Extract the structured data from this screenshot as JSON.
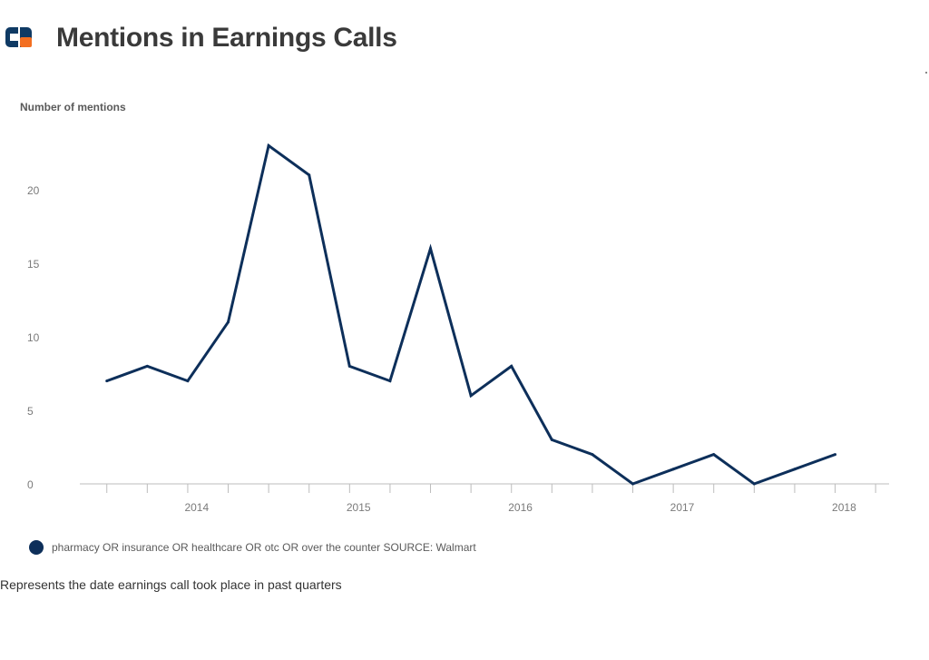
{
  "title": "Mentions in Earnings Calls",
  "logo": {
    "icon": "company-logo-icon",
    "colors": {
      "dark": "#0f3a64",
      "accent": "#f36f21"
    }
  },
  "colors": {
    "series": "#0d2f5a",
    "axis": "#bcbcbc",
    "tick_text": "#7a7a7a",
    "title": "#3a3a3a"
  },
  "legend": {
    "label": "pharmacy OR insurance OR healthcare OR otc OR over the counter SOURCE: Walmart"
  },
  "note": "Represents the date earnings call took place in past quarters",
  "chart_data": {
    "type": "line",
    "title": "Mentions in Earnings Calls",
    "ylabel": "Number of mentions",
    "xlabel": "",
    "ylim": [
      0,
      25
    ],
    "xlim": [
      "2013-06",
      "2018-06"
    ],
    "yticks": [
      0,
      5,
      10,
      15,
      20
    ],
    "xticks": [
      "2014",
      "2015",
      "2016",
      "2017",
      "2018"
    ],
    "grid": false,
    "legend_position": "bottom-left",
    "series": [
      {
        "name": "pharmacy OR insurance OR healthcare OR otc OR over the counter SOURCE: Walmart",
        "x": [
          "2013-08",
          "2013-11",
          "2014-02",
          "2014-05",
          "2014-08",
          "2014-11",
          "2015-02",
          "2015-05",
          "2015-08",
          "2015-11",
          "2016-02",
          "2016-05",
          "2016-08",
          "2016-11",
          "2017-02",
          "2017-05",
          "2017-08",
          "2017-11",
          "2018-02"
        ],
        "y": [
          7,
          8,
          7,
          11,
          23,
          21,
          8,
          7,
          16,
          6,
          8,
          3,
          2,
          0,
          1,
          2,
          0,
          1,
          2
        ]
      }
    ]
  }
}
